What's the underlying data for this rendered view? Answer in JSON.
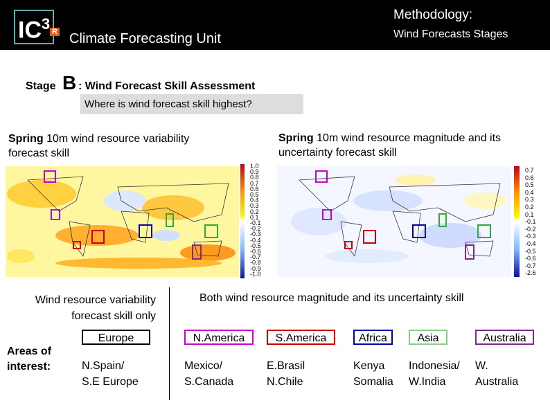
{
  "header": {
    "logo": {
      "main": "IC",
      "superscript": "3",
      "badge": "R"
    },
    "unit": "Climate Forecasting Unit",
    "title": "Methodology:",
    "subtitle": "Wind Forecasts Stages"
  },
  "stage": {
    "label": "Stage",
    "letter": "B",
    "title": ": Wind Forecast Skill Assessment",
    "question": "Where is wind forecast skill highest?"
  },
  "panels": [
    {
      "title_bold": "Spring",
      "title_rest": " 10m wind resource variability forecast skill",
      "colorbar": [
        "1.0",
        "0.9",
        "0.8",
        "0.7",
        "0.6",
        "0.5",
        "0.4",
        "0.3",
        "0.2",
        "0.1",
        "-0.1",
        "-0.2",
        "-0.3",
        "-0.4",
        "-0.5",
        "-0.6",
        "-0.7",
        "-0.8",
        "-0.9",
        "-1.0"
      ]
    },
    {
      "title_bold": "Spring",
      "title_rest": " 10m wind resource magnitude and its uncertainty forecast skill",
      "colorbar": [
        "0.7",
        "0.6",
        "0.5",
        "0.4",
        "0.3",
        "0.2",
        "0.1",
        "-0.1",
        "-0.2",
        "-0.3",
        "-0.4",
        "-0.5",
        "-0.6",
        "-0.7",
        "-2.6"
      ]
    }
  ],
  "captions": {
    "left": "Wind resource variability forecast skill only",
    "right": "Both wind resource magnitude and its uncertainty skill"
  },
  "areas_label": "Areas of interest:",
  "regions": [
    {
      "name": "Europe",
      "color": "#000000",
      "places": [
        "N.Spain/",
        "S.E Europe"
      ]
    },
    {
      "name": "N.America",
      "color": "#cc00cc",
      "places": [
        "Mexico/",
        "S.Canada"
      ]
    },
    {
      "name": "S.America",
      "color": "#cc0000",
      "places": [
        "E.Brasil",
        "N.Chile"
      ]
    },
    {
      "name": "Africa",
      "color": "#0000aa",
      "places": [
        "Kenya",
        "Somalia"
      ]
    },
    {
      "name": "Asia",
      "color": "#88cc88",
      "places": [
        "Indonesia/",
        "W.India"
      ]
    },
    {
      "name": "Australia",
      "color": "#7a2a8a",
      "places": [
        "W.",
        "Australia"
      ]
    }
  ]
}
